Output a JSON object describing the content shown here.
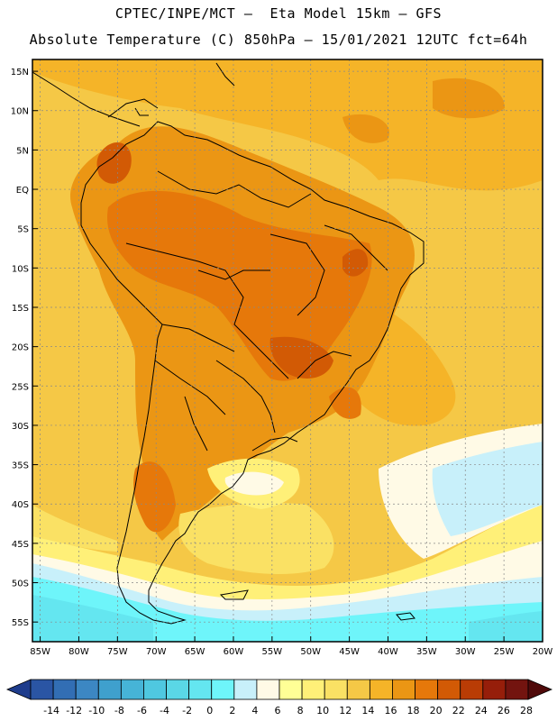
{
  "header": {
    "line1": "CPTEC/INPE/MCT –  Eta Model 15km – GFS",
    "line2": "Absolute Temperature (C) 850hPa – 15/01/2021 12UTC fct=64h"
  },
  "map": {
    "lat_labels": [
      "15N",
      "10N",
      "5N",
      "EQ",
      "5S",
      "10S",
      "15S",
      "20S",
      "25S",
      "30S",
      "35S",
      "40S",
      "45S",
      "50S",
      "55S"
    ],
    "lat_values": [
      15,
      10,
      5,
      0,
      -5,
      -10,
      -15,
      -20,
      -25,
      -30,
      -35,
      -40,
      -45,
      -50,
      -55
    ],
    "lon_labels": [
      "85W",
      "80W",
      "75W",
      "70W",
      "65W",
      "60W",
      "55W",
      "50W",
      "45W",
      "40W",
      "35W",
      "30W",
      "25W",
      "20W"
    ],
    "lon_values": [
      -85,
      -80,
      -75,
      -70,
      -65,
      -60,
      -55,
      -50,
      -45,
      -40,
      -35,
      -30,
      -25,
      -20
    ],
    "lat_range": [
      -57.5,
      16.5
    ],
    "lon_range": [
      -86,
      -20
    ]
  },
  "colorbar": {
    "labels": [
      "-14",
      "-12",
      "-10",
      "-8",
      "-6",
      "-4",
      "-2",
      "0",
      "2",
      "4",
      "6",
      "8",
      "10",
      "12",
      "14",
      "16",
      "18",
      "20",
      "22",
      "24",
      "26",
      "28"
    ],
    "colors": [
      "#1e3c8c",
      "#2a55a4",
      "#326eb4",
      "#3c87c3",
      "#3fa0cd",
      "#46b4d7",
      "#4fc8e0",
      "#5ad7e6",
      "#64e6f0",
      "#6ef5fa",
      "#c8f0fa",
      "#fffae6",
      "#ffff96",
      "#fff078",
      "#fae164",
      "#f5c846",
      "#f5b428",
      "#eb9614",
      "#e6780a",
      "#d25a05",
      "#b93c05",
      "#961e0a",
      "#73140f",
      "#500a0a"
    ]
  }
}
